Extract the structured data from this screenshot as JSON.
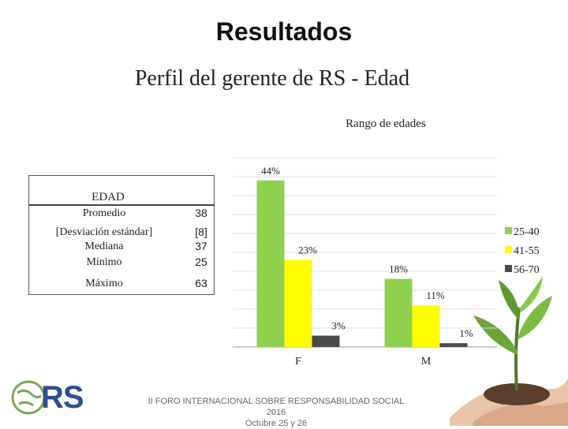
{
  "slide": {
    "title": "Resultados",
    "subtitle": "Perfil del gerente de RS - Edad",
    "footer_line1": "II FORO INTERNACIONAL SOBRE RESPONSABILIDAD SOCIAL 2016",
    "footer_line2": "Octubre 25 y 26",
    "logo_text": "RS"
  },
  "stats_table": {
    "header": "EDAD",
    "rows": [
      {
        "label": "Promedio",
        "value": "38"
      },
      {
        "label": "[Desviación estándar]",
        "value": "[8]"
      },
      {
        "label": "Mediana",
        "value": "37"
      },
      {
        "label": "Mínimo",
        "value": "25"
      },
      {
        "label": "Máximo",
        "value": "63"
      }
    ]
  },
  "colors": {
    "25-40": "#8fd14f",
    "41-55": "#ffff00",
    "56-70": "#4a4a4a"
  },
  "chart_data": {
    "type": "bar",
    "title": "Rango de edades",
    "categories": [
      "F",
      "M"
    ],
    "series": [
      {
        "name": "25-40",
        "values": [
          44,
          18
        ],
        "labels": [
          "44%",
          "18%"
        ]
      },
      {
        "name": "41-55",
        "values": [
          23,
          11
        ],
        "labels": [
          "23%",
          "11%"
        ]
      },
      {
        "name": "56-70",
        "values": [
          3,
          1
        ],
        "labels": [
          "3%",
          "1%"
        ]
      }
    ],
    "ylim": [
      0,
      50
    ],
    "grid": true,
    "legend": "right"
  }
}
